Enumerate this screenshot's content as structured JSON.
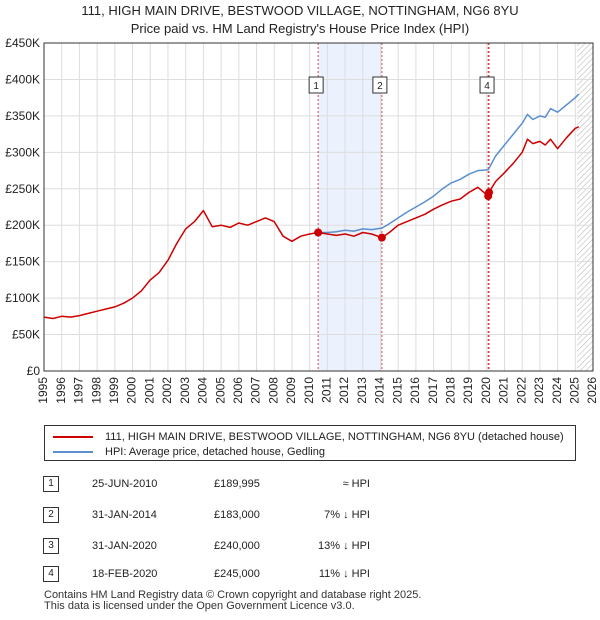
{
  "title": {
    "line1": "111, HIGH MAIN DRIVE, BESTWOOD VILLAGE, NOTTINGHAM, NG6 8YU",
    "line2": "Price paid vs. HM Land Registry's House Price Index (HPI)"
  },
  "chart_data": {
    "type": "line",
    "title": "111, HIGH MAIN DRIVE, BESTWOOD VILLAGE, NOTTINGHAM, NG6 8YU",
    "subtitle": "Price paid vs. HM Land Registry's House Price Index (HPI)",
    "xlabel": "",
    "ylabel": "",
    "xlim": [
      1995,
      2026
    ],
    "ylim": [
      0,
      450000
    ],
    "grid": true,
    "y_ticks": [
      0,
      50000,
      100000,
      150000,
      200000,
      250000,
      300000,
      350000,
      400000,
      450000
    ],
    "y_tick_labels": [
      "£0",
      "£50K",
      "£100K",
      "£150K",
      "£200K",
      "£250K",
      "£300K",
      "£350K",
      "£400K",
      "£450K"
    ],
    "x_ticks": [
      1995,
      1996,
      1997,
      1998,
      1999,
      2000,
      2001,
      2002,
      2003,
      2004,
      2005,
      2006,
      2007,
      2008,
      2009,
      2010,
      2011,
      2012,
      2013,
      2014,
      2015,
      2016,
      2017,
      2018,
      2019,
      2020,
      2021,
      2022,
      2023,
      2024,
      2025,
      2026
    ],
    "x_tick_labels": [
      "1995",
      "1996",
      "1997",
      "1998",
      "1999",
      "2000",
      "2001",
      "2002",
      "2003",
      "2004",
      "2005",
      "2006",
      "2007",
      "2008",
      "2009",
      "2010",
      "2011",
      "2012",
      "2013",
      "2014",
      "2015",
      "2016",
      "2017",
      "2018",
      "2019",
      "2020",
      "2021",
      "2022",
      "2023",
      "2024",
      "2025",
      "2026"
    ],
    "shaded_period": [
      2010.48,
      2014.08
    ],
    "future_hatch_from": 2025.1,
    "series": [
      {
        "name": "111, HIGH MAIN DRIVE, BESTWOOD VILLAGE, NOTTINGHAM, NG6 8YU (detached house)",
        "color": "#cc0000",
        "x": [
          1995.0,
          1995.5,
          1996.0,
          1996.5,
          1997.0,
          1997.5,
          1998.0,
          1998.5,
          1999.0,
          1999.5,
          2000.0,
          2000.5,
          2001.0,
          2001.5,
          2002.0,
          2002.5,
          2003.0,
          2003.5,
          2004.0,
          2004.5,
          2005.0,
          2005.5,
          2006.0,
          2006.5,
          2007.0,
          2007.5,
          2008.0,
          2008.5,
          2009.0,
          2009.5,
          2010.0,
          2010.48,
          2011.0,
          2011.5,
          2012.0,
          2012.5,
          2013.0,
          2013.5,
          2014.08,
          2014.5,
          2015.0,
          2015.5,
          2016.0,
          2016.5,
          2017.0,
          2017.5,
          2018.0,
          2018.5,
          2019.0,
          2019.5,
          2020.08,
          2020.13,
          2020.5,
          2021.0,
          2021.5,
          2022.0,
          2022.3,
          2022.6,
          2023.0,
          2023.3,
          2023.6,
          2024.0,
          2024.5,
          2025.0,
          2025.2
        ],
        "values": [
          74000,
          72000,
          75000,
          74000,
          76000,
          79000,
          82000,
          85000,
          88000,
          93000,
          100000,
          110000,
          125000,
          135000,
          152000,
          175000,
          195000,
          205000,
          220000,
          198000,
          200000,
          197000,
          203000,
          200000,
          205000,
          210000,
          205000,
          185000,
          178000,
          185000,
          188000,
          189995,
          188000,
          186000,
          188000,
          185000,
          190000,
          188000,
          183000,
          190000,
          200000,
          205000,
          210000,
          215000,
          222000,
          228000,
          233000,
          236000,
          245000,
          252000,
          240000,
          245000,
          260000,
          272000,
          285000,
          300000,
          318000,
          312000,
          315000,
          310000,
          318000,
          305000,
          320000,
          333000,
          335000
        ]
      },
      {
        "name": "HPI: Average price, detached house, Gedling",
        "color": "#5b8fd0",
        "x": [
          2010.48,
          2011.0,
          2011.5,
          2012.0,
          2012.5,
          2013.0,
          2013.5,
          2014.08,
          2014.5,
          2015.0,
          2015.5,
          2016.0,
          2016.5,
          2017.0,
          2017.5,
          2018.0,
          2018.5,
          2019.0,
          2019.5,
          2020.08,
          2020.5,
          2021.0,
          2021.5,
          2022.0,
          2022.3,
          2022.6,
          2023.0,
          2023.3,
          2023.6,
          2024.0,
          2024.5,
          2025.0,
          2025.2
        ],
        "values": [
          189995,
          190000,
          191000,
          193000,
          192000,
          195000,
          194000,
          196000,
          202000,
          210000,
          218000,
          225000,
          232000,
          240000,
          250000,
          258000,
          263000,
          270000,
          275000,
          276000,
          295000,
          310000,
          325000,
          340000,
          352000,
          345000,
          350000,
          348000,
          360000,
          355000,
          365000,
          375000,
          380000
        ]
      }
    ],
    "sale_points": [
      {
        "label": "1",
        "x": 2010.48,
        "value": 189995
      },
      {
        "label": "2",
        "x": 2014.08,
        "value": 183000
      },
      {
        "label": "3",
        "x": 2020.08,
        "value": 240000
      },
      {
        "label": "4",
        "x": 2020.13,
        "value": 245000
      }
    ],
    "marker_boxes": [
      {
        "label": "1",
        "x": 2010.48
      },
      {
        "label": "2",
        "x": 2014.08
      },
      {
        "label": "4",
        "x": 2020.13
      }
    ]
  },
  "legend": {
    "items": [
      {
        "label": "111, HIGH MAIN DRIVE, BESTWOOD VILLAGE, NOTTINGHAM, NG6 8YU (detached house)",
        "color": "#cc0000"
      },
      {
        "label": "HPI: Average price, detached house, Gedling",
        "color": "#5b8fd0"
      }
    ]
  },
  "sales": [
    {
      "num": "1",
      "date": "25-JUN-2010",
      "price": "£189,995",
      "relation": "≈ HPI"
    },
    {
      "num": "2",
      "date": "31-JAN-2014",
      "price": "£183,000",
      "relation": "7% ↓ HPI"
    },
    {
      "num": "3",
      "date": "31-JAN-2020",
      "price": "£240,000",
      "relation": "13% ↓ HPI"
    },
    {
      "num": "4",
      "date": "18-FEB-2020",
      "price": "£245,000",
      "relation": "11% ↓ HPI"
    }
  ],
  "footer": {
    "line1": "Contains HM Land Registry data © Crown copyright and database right 2025.",
    "line2": "This data is licensed under the Open Government Licence v3.0."
  }
}
